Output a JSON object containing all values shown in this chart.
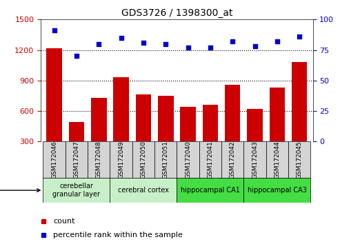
{
  "title": "GDS3726 / 1398300_at",
  "samples": [
    "GSM172046",
    "GSM172047",
    "GSM172048",
    "GSM172049",
    "GSM172050",
    "GSM172051",
    "GSM172040",
    "GSM172041",
    "GSM172042",
    "GSM172043",
    "GSM172044",
    "GSM172045"
  ],
  "bar_values": [
    1220,
    490,
    730,
    930,
    760,
    750,
    640,
    660,
    860,
    620,
    830,
    1080
  ],
  "percentile_values": [
    91,
    70,
    80,
    85,
    81,
    80,
    77,
    77,
    82,
    78,
    82,
    86
  ],
  "bar_color": "#cc0000",
  "dot_color": "#0000cc",
  "ylim_left": [
    300,
    1500
  ],
  "yticks_left": [
    300,
    600,
    900,
    1200,
    1500
  ],
  "ylim_right": [
    0,
    100
  ],
  "yticks_right": [
    0,
    25,
    50,
    75,
    100
  ],
  "grid_values": [
    600,
    900,
    1200
  ],
  "tissue_groups": [
    {
      "label": "cerebellar\ngranular layer",
      "start": 0,
      "end": 3,
      "color": "#c8f0c8"
    },
    {
      "label": "cerebral cortex",
      "start": 3,
      "end": 6,
      "color": "#c8f0c8"
    },
    {
      "label": "hippocampal CA1",
      "start": 6,
      "end": 9,
      "color": "#44dd44"
    },
    {
      "label": "hippocampal CA3",
      "start": 9,
      "end": 12,
      "color": "#44dd44"
    }
  ],
  "sample_box_color": "#d4d4d4",
  "legend_count_color": "#cc0000",
  "legend_dot_color": "#0000cc",
  "tick_label_color_left": "#cc0000",
  "tick_label_color_right": "#0000cc",
  "bar_width": 0.7,
  "figsize": [
    4.93,
    3.54
  ],
  "dpi": 100
}
